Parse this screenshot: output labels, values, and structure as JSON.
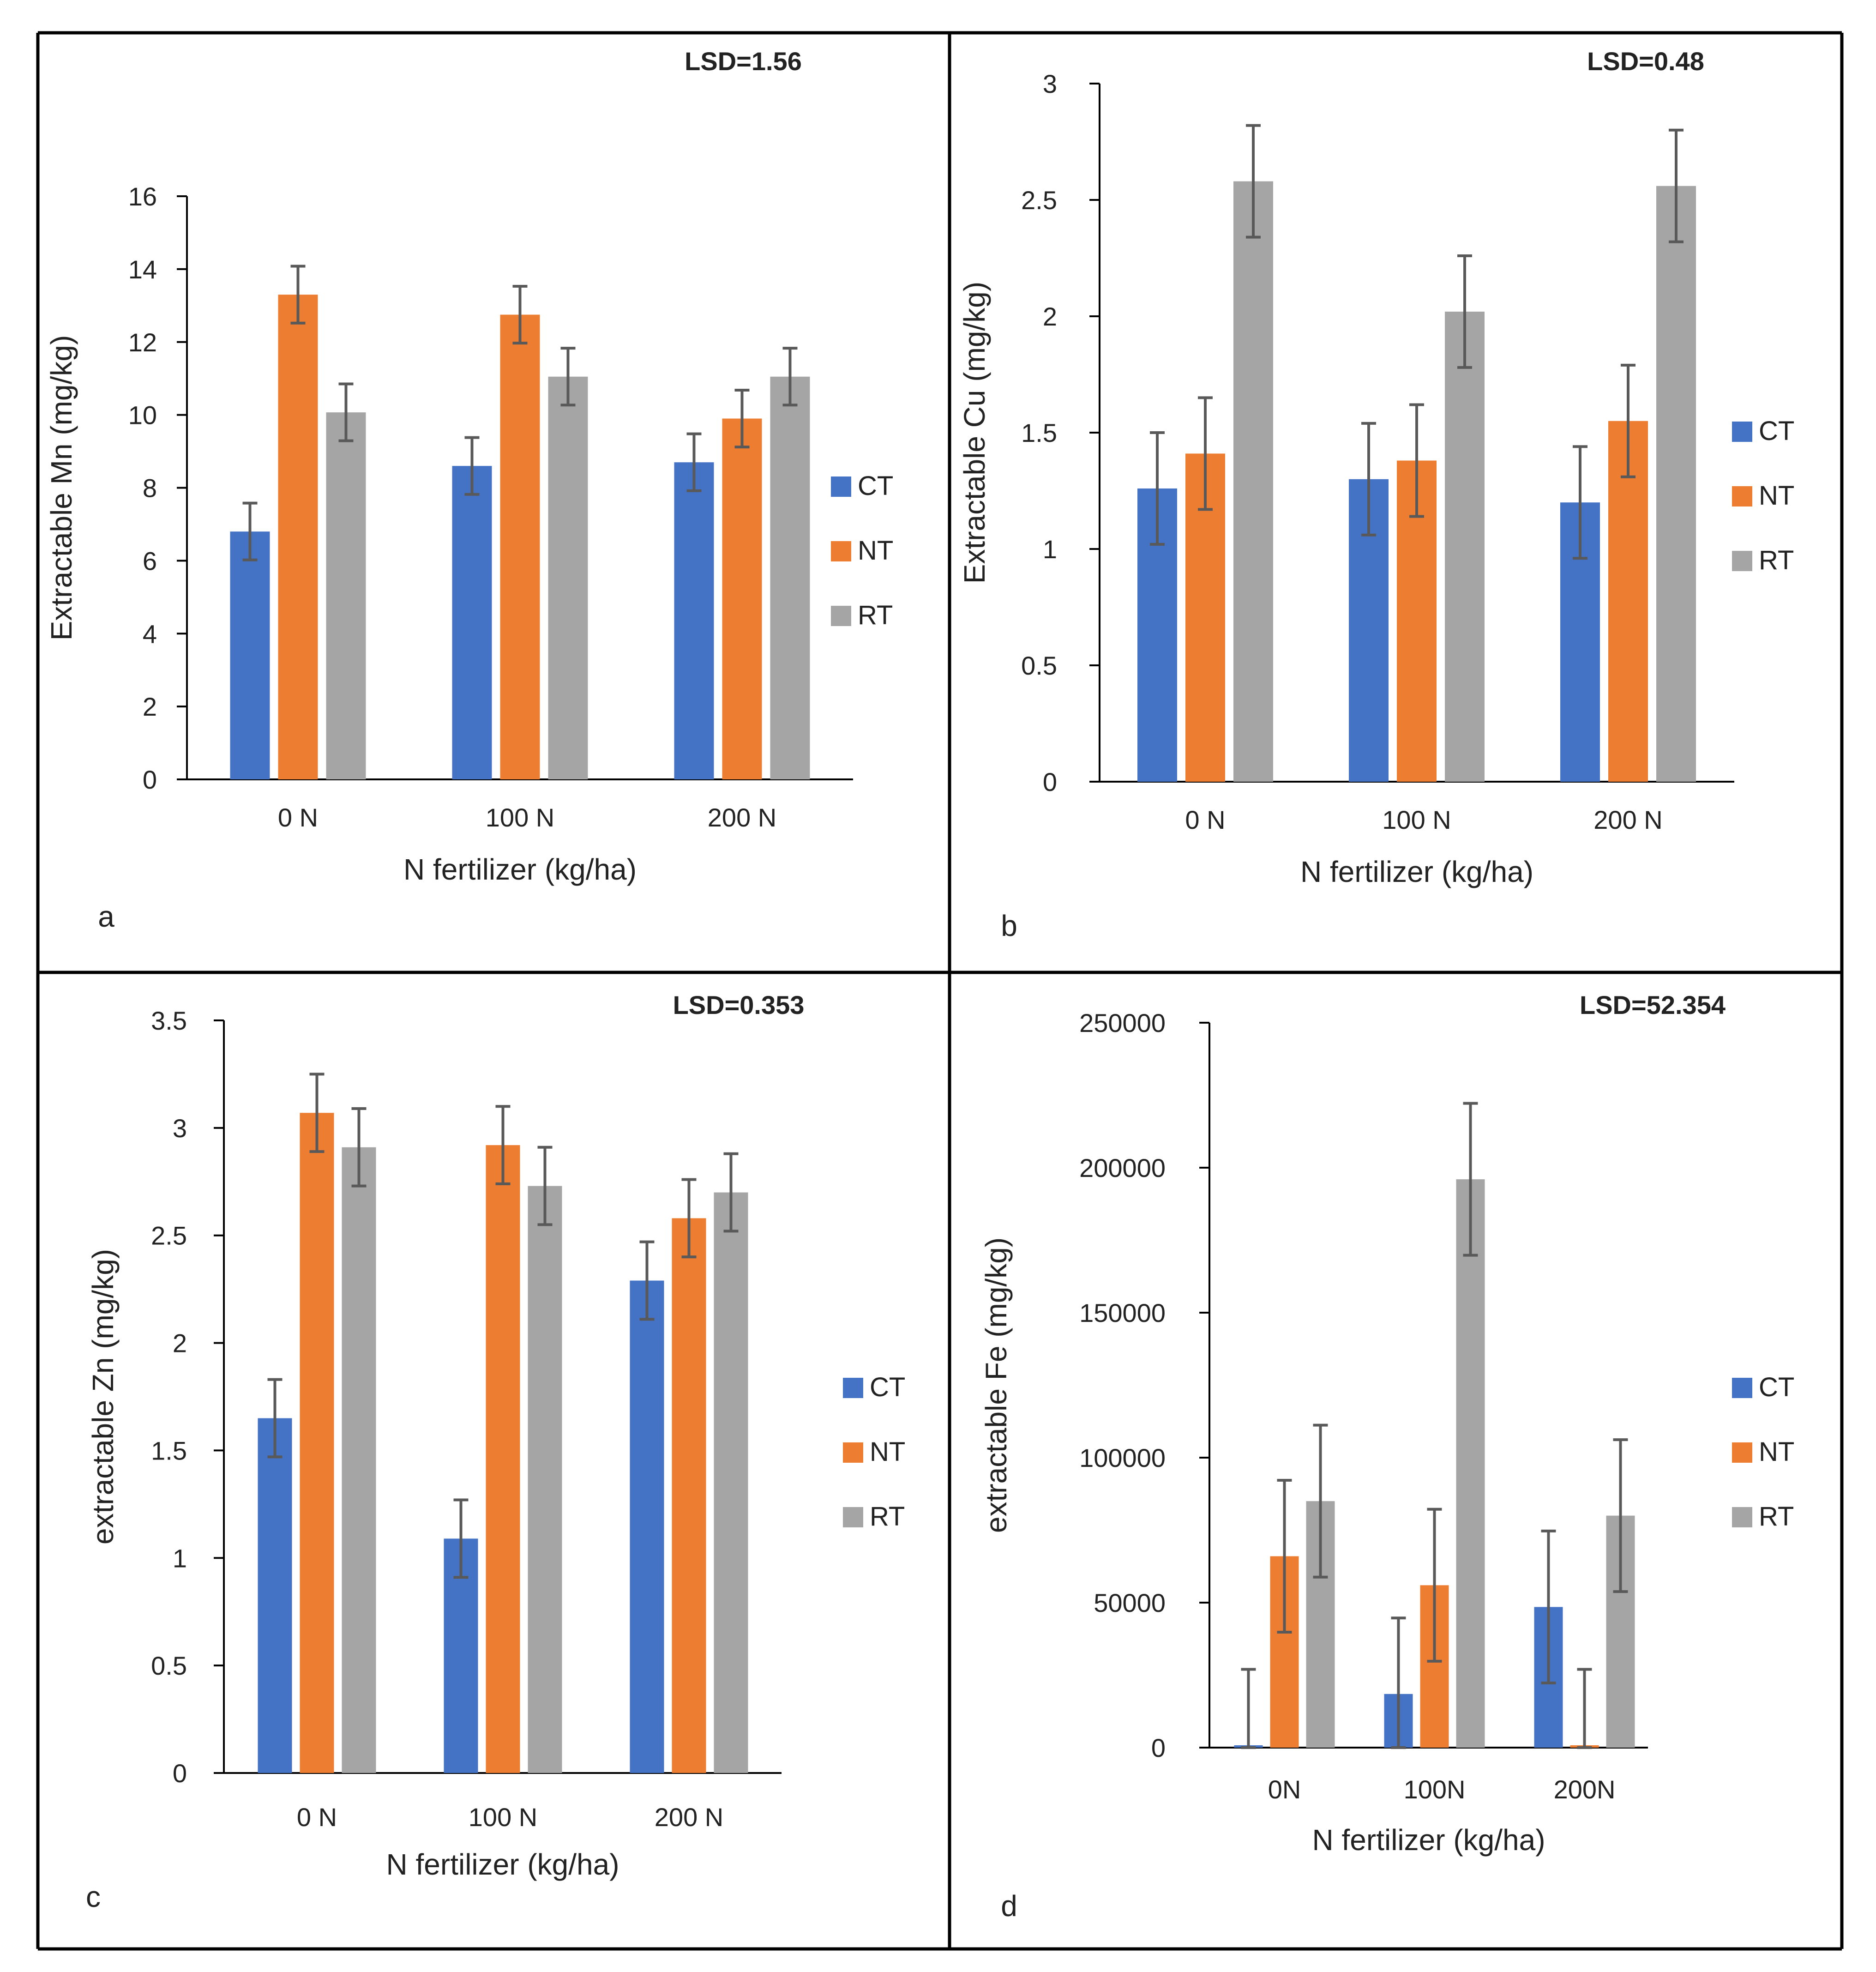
{
  "colors": {
    "CT": "#4472C4",
    "NT": "#ED7D31",
    "RT": "#A5A5A5",
    "axis": "#D9D9D9",
    "errorbar": "#595959",
    "border": "#000000"
  },
  "chart_data": [
    {
      "type": "bar",
      "panel_letter": "a",
      "lsd": "LSD=1.56",
      "xlabel": "N fertilizer (kg/ha)",
      "ylabel": "Extractable Mn (mg/kg)",
      "ylim": [
        0,
        16
      ],
      "yticks": [
        "0",
        "2",
        "4",
        "6",
        "8",
        "10",
        "12",
        "14",
        "16"
      ],
      "categories": [
        "0 N",
        "100 N",
        "200 N"
      ],
      "series": [
        {
          "name": "CT",
          "values": [
            6.8,
            8.6,
            8.7
          ],
          "error": [
            0.78,
            0.78,
            0.78
          ]
        },
        {
          "name": "NT",
          "values": [
            13.3,
            12.75,
            9.9
          ],
          "error": [
            0.78,
            0.78,
            0.78
          ]
        },
        {
          "name": "RT",
          "values": [
            10.07,
            11.05,
            11.05
          ],
          "error": [
            0.78,
            0.78,
            0.78
          ]
        }
      ]
    },
    {
      "type": "bar",
      "panel_letter": "b",
      "lsd": "LSD=0.48",
      "xlabel": "N fertilizer (kg/ha)",
      "ylabel": "Extractable Cu (mg/kg)",
      "ylim": [
        0,
        3
      ],
      "yticks": [
        "0",
        "0.5",
        "1",
        "1.5",
        "2",
        "2.5",
        "3"
      ],
      "categories": [
        "0 N",
        "100 N",
        "200 N"
      ],
      "series": [
        {
          "name": "CT",
          "values": [
            1.26,
            1.3,
            1.2
          ],
          "error": [
            0.24,
            0.24,
            0.24
          ]
        },
        {
          "name": "NT",
          "values": [
            1.41,
            1.38,
            1.55
          ],
          "error": [
            0.24,
            0.24,
            0.24
          ]
        },
        {
          "name": "RT",
          "values": [
            2.58,
            2.02,
            2.56
          ],
          "error": [
            0.24,
            0.24,
            0.24
          ]
        }
      ]
    },
    {
      "type": "bar",
      "panel_letter": "c",
      "lsd": "LSD=0.353",
      "xlabel": "N fertilizer (kg/ha)",
      "ylabel": "extractable Zn (mg/kg)",
      "ylim": [
        0,
        3.5
      ],
      "yticks": [
        "0",
        "0.5",
        "1",
        "1.5",
        "2",
        "2.5",
        "3",
        "3.5"
      ],
      "categories": [
        "0 N",
        "100 N",
        "200 N"
      ],
      "series": [
        {
          "name": "CT",
          "values": [
            1.65,
            1.09,
            2.29
          ],
          "error": [
            0.18,
            0.18,
            0.18
          ]
        },
        {
          "name": "NT",
          "values": [
            3.07,
            2.92,
            2.58
          ],
          "error": [
            0.18,
            0.18,
            0.18
          ]
        },
        {
          "name": "RT",
          "values": [
            2.91,
            2.73,
            2.7
          ],
          "error": [
            0.18,
            0.18,
            0.18
          ]
        }
      ]
    },
    {
      "type": "bar",
      "panel_letter": "d",
      "lsd": "LSD=52.354",
      "xlabel": "N fertilizer (kg/ha)",
      "ylabel": "extractable Fe (mg/kg)",
      "ylim": [
        0,
        250000
      ],
      "yticks": [
        "0",
        "50000",
        "100000",
        "150000",
        "200000",
        "250000"
      ],
      "categories": [
        "0N",
        "100N",
        "200N"
      ],
      "series": [
        {
          "name": "CT",
          "values": [
            800,
            18500,
            48500
          ],
          "error": [
            26200,
            26200,
            26200
          ]
        },
        {
          "name": "NT",
          "values": [
            66000,
            56000,
            800
          ],
          "error": [
            26200,
            26200,
            26200
          ]
        },
        {
          "name": "RT",
          "values": [
            85000,
            196000,
            80000
          ],
          "error": [
            26200,
            26200,
            26200
          ]
        }
      ]
    }
  ]
}
